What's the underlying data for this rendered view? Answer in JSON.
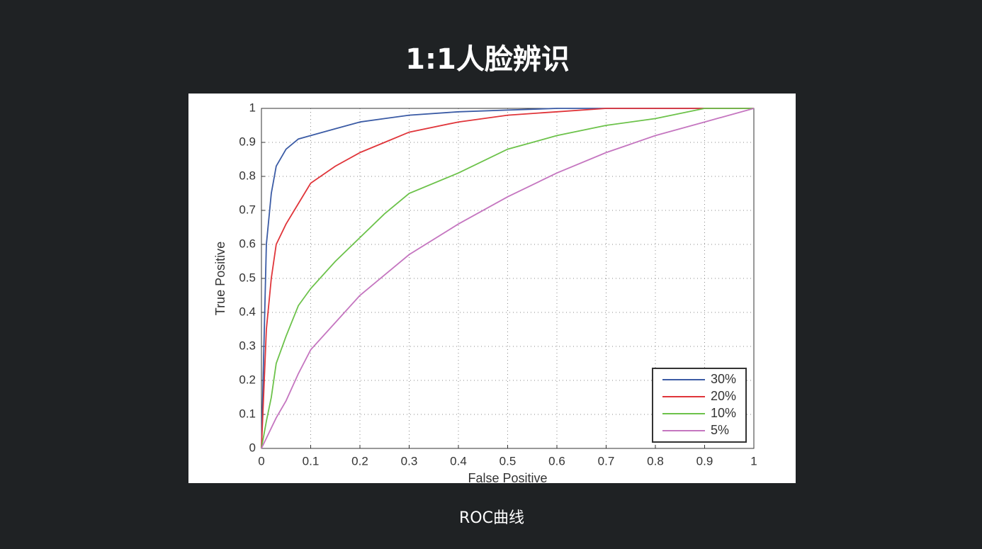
{
  "page": {
    "title": "1:1人脸辨识",
    "caption": "ROC曲线"
  },
  "chart_data": {
    "type": "line",
    "x_label": "False Positive",
    "y_label": "True Positive",
    "x": [
      0,
      0.01,
      0.02,
      0.03,
      0.05,
      0.075,
      0.1,
      0.15,
      0.2,
      0.25,
      0.3,
      0.4,
      0.5,
      0.6,
      0.7,
      0.8,
      0.9,
      1
    ],
    "series": [
      {
        "name": "30%",
        "color": "#3b5ba5",
        "values": [
          0,
          0.6,
          0.75,
          0.83,
          0.88,
          0.91,
          0.92,
          0.94,
          0.96,
          0.97,
          0.98,
          0.99,
          0.995,
          1,
          1,
          1,
          1,
          1
        ]
      },
      {
        "name": "20%",
        "color": "#e0353a",
        "values": [
          0,
          0.35,
          0.5,
          0.6,
          0.66,
          0.72,
          0.78,
          0.83,
          0.87,
          0.9,
          0.93,
          0.96,
          0.98,
          0.99,
          1,
          1,
          1,
          1
        ]
      },
      {
        "name": "10%",
        "color": "#6cc24a",
        "values": [
          0,
          0.08,
          0.15,
          0.25,
          0.33,
          0.42,
          0.47,
          0.55,
          0.62,
          0.69,
          0.75,
          0.81,
          0.88,
          0.92,
          0.95,
          0.97,
          1,
          1
        ]
      },
      {
        "name": "5%",
        "color": "#c576c0",
        "values": [
          0,
          0.03,
          0.06,
          0.09,
          0.14,
          0.22,
          0.29,
          0.37,
          0.45,
          0.51,
          0.57,
          0.66,
          0.74,
          0.81,
          0.87,
          0.92,
          0.96,
          1
        ]
      }
    ],
    "xlim": [
      0,
      1
    ],
    "ylim": [
      0,
      1
    ],
    "xticks": [
      0,
      0.1,
      0.2,
      0.3,
      0.4,
      0.5,
      0.6,
      0.7,
      0.8,
      0.9,
      1
    ],
    "yticks": [
      0,
      0.1,
      0.2,
      0.3,
      0.4,
      0.5,
      0.6,
      0.7,
      0.8,
      0.9,
      1
    ],
    "grid": true,
    "legend": "lower-right"
  }
}
